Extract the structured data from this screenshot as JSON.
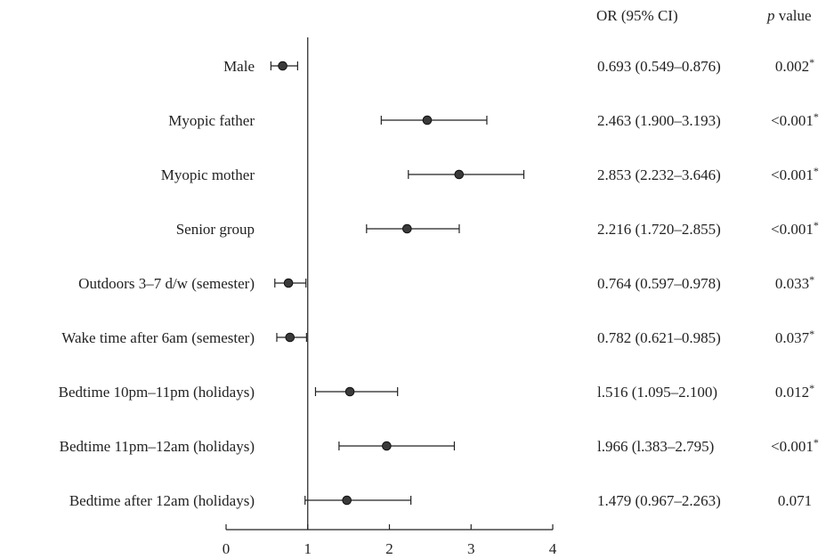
{
  "header": {
    "or_label": "OR (95% CI)",
    "p_label_var": "p",
    "p_label_rest": " value"
  },
  "chart_data": {
    "type": "forest",
    "xlim": [
      0,
      4
    ],
    "x_ticks": [
      "0",
      "1",
      "2",
      "3",
      "4"
    ],
    "reference_line": 1,
    "rows": [
      {
        "label": "Male",
        "or": 0.693,
        "lo": 0.549,
        "hi": 0.876,
        "ci_text": "0.693 (0.549–0.876)",
        "p_text": "0.002*"
      },
      {
        "label": "Myopic father",
        "or": 2.463,
        "lo": 1.9,
        "hi": 3.193,
        "ci_text": "2.463 (1.900–3.193)",
        "p_text": "<0.001*"
      },
      {
        "label": "Myopic mother",
        "or": 2.853,
        "lo": 2.232,
        "hi": 3.646,
        "ci_text": "2.853 (2.232–3.646)",
        "p_text": "<0.001*"
      },
      {
        "label": "Senior group",
        "or": 2.216,
        "lo": 1.72,
        "hi": 2.855,
        "ci_text": "2.216 (1.720–2.855)",
        "p_text": "<0.001*"
      },
      {
        "label": "Outdoors 3–7 d/w (semester)",
        "or": 0.764,
        "lo": 0.597,
        "hi": 0.978,
        "ci_text": "0.764 (0.597–0.978)",
        "p_text": "0.033*"
      },
      {
        "label": "Wake time after 6am (semester)",
        "or": 0.782,
        "lo": 0.621,
        "hi": 0.985,
        "ci_text": "0.782 (0.621–0.985)",
        "p_text": "0.037*"
      },
      {
        "label": "Bedtime 10pm–11pm (holidays)",
        "or": 1.516,
        "lo": 1.095,
        "hi": 2.1,
        "ci_text": "l.516 (1.095–2.100)",
        "p_text": "0.012*"
      },
      {
        "label": "Bedtime 11pm–12am (holidays)",
        "or": 1.966,
        "lo": 1.383,
        "hi": 2.795,
        "ci_text": "l.966 (l.383–2.795)",
        "p_text": "<0.001*"
      },
      {
        "label": "Bedtime after 12am (holidays)",
        "or": 1.479,
        "lo": 0.967,
        "hi": 2.263,
        "ci_text": "1.479 (0.967–2.263)",
        "p_text": "0.071"
      }
    ]
  }
}
